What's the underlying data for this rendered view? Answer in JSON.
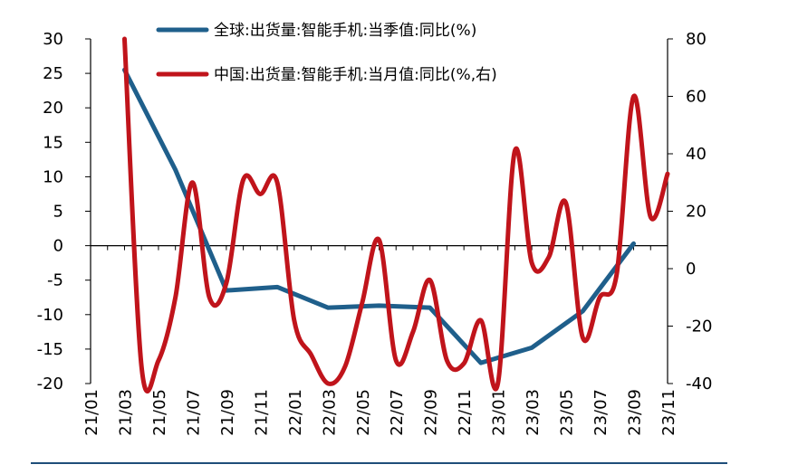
{
  "chart_data": {
    "type": "line",
    "x": [
      "21/01",
      "21/02",
      "21/03",
      "21/04",
      "21/05",
      "21/06",
      "21/07",
      "21/08",
      "21/09",
      "21/10",
      "21/11",
      "21/12",
      "22/01",
      "22/02",
      "22/03",
      "22/04",
      "22/05",
      "22/06",
      "22/07",
      "22/08",
      "22/09",
      "22/10",
      "22/11",
      "22/12",
      "23/01",
      "23/02",
      "23/03",
      "23/04",
      "23/05",
      "23/06",
      "23/07",
      "23/08",
      "23/09",
      "23/10",
      "23/11"
    ],
    "x_tick_labels": [
      "21/01",
      "21/03",
      "21/05",
      "21/07",
      "21/09",
      "21/11",
      "22/01",
      "22/03",
      "22/05",
      "22/07",
      "22/09",
      "22/11",
      "23/01",
      "23/03",
      "23/05",
      "23/07",
      "23/09",
      "23/11"
    ],
    "y_left": {
      "ylim": [
        -20,
        30
      ],
      "ticks": [
        30,
        25,
        20,
        15,
        10,
        5,
        0,
        -5,
        -10,
        -15,
        -20
      ]
    },
    "y_right": {
      "ylim": [
        -40,
        80
      ],
      "ticks": [
        80,
        60,
        40,
        20,
        0,
        -20,
        -40
      ]
    },
    "series": [
      {
        "name": "全球:出货量:智能手机:当季值:同比(%)",
        "axis": "left",
        "color": "#1f5f8b",
        "points": [
          [
            "21/03",
            25.5
          ],
          [
            "21/06",
            11
          ],
          [
            "21/09",
            -6.5
          ],
          [
            "21/12",
            -6
          ],
          [
            "22/03",
            -9
          ],
          [
            "22/06",
            -8.7
          ],
          [
            "22/09",
            -9
          ],
          [
            "22/12",
            -17
          ],
          [
            "23/03",
            -14.8
          ],
          [
            "23/06",
            -9.5
          ],
          [
            "23/09",
            0.3
          ]
        ]
      },
      {
        "name": "中国:出货量:智能手机:当月值:同比(%,右)",
        "axis": "right",
        "color": "#c0141b",
        "points": [
          [
            "21/03",
            80
          ],
          [
            "21/04",
            -34
          ],
          [
            "21/05",
            -32
          ],
          [
            "21/06",
            -10
          ],
          [
            "21/07",
            30
          ],
          [
            "21/08",
            -10
          ],
          [
            "21/09",
            -5
          ],
          [
            "21/10",
            31
          ],
          [
            "21/11",
            26
          ],
          [
            "21/12",
            30
          ],
          [
            "22/01",
            -18
          ],
          [
            "22/02",
            -30
          ],
          [
            "22/03",
            -40
          ],
          [
            "22/04",
            -34
          ],
          [
            "22/05",
            -12
          ],
          [
            "22/06",
            10
          ],
          [
            "22/07",
            -32
          ],
          [
            "22/08",
            -22
          ],
          [
            "22/09",
            -4
          ],
          [
            "22/10",
            -32
          ],
          [
            "22/11",
            -33
          ],
          [
            "22/12",
            -18
          ],
          [
            "23/01",
            -42
          ],
          [
            "23/02",
            41
          ],
          [
            "23/03",
            2
          ],
          [
            "23/04",
            4
          ],
          [
            "23/05",
            23
          ],
          [
            "23/06",
            -24
          ],
          [
            "23/07",
            -10
          ],
          [
            "23/08",
            -2
          ],
          [
            "23/09",
            60
          ],
          [
            "23/10",
            18
          ],
          [
            "23/11",
            33
          ]
        ]
      }
    ],
    "legend_position": "top-center"
  }
}
